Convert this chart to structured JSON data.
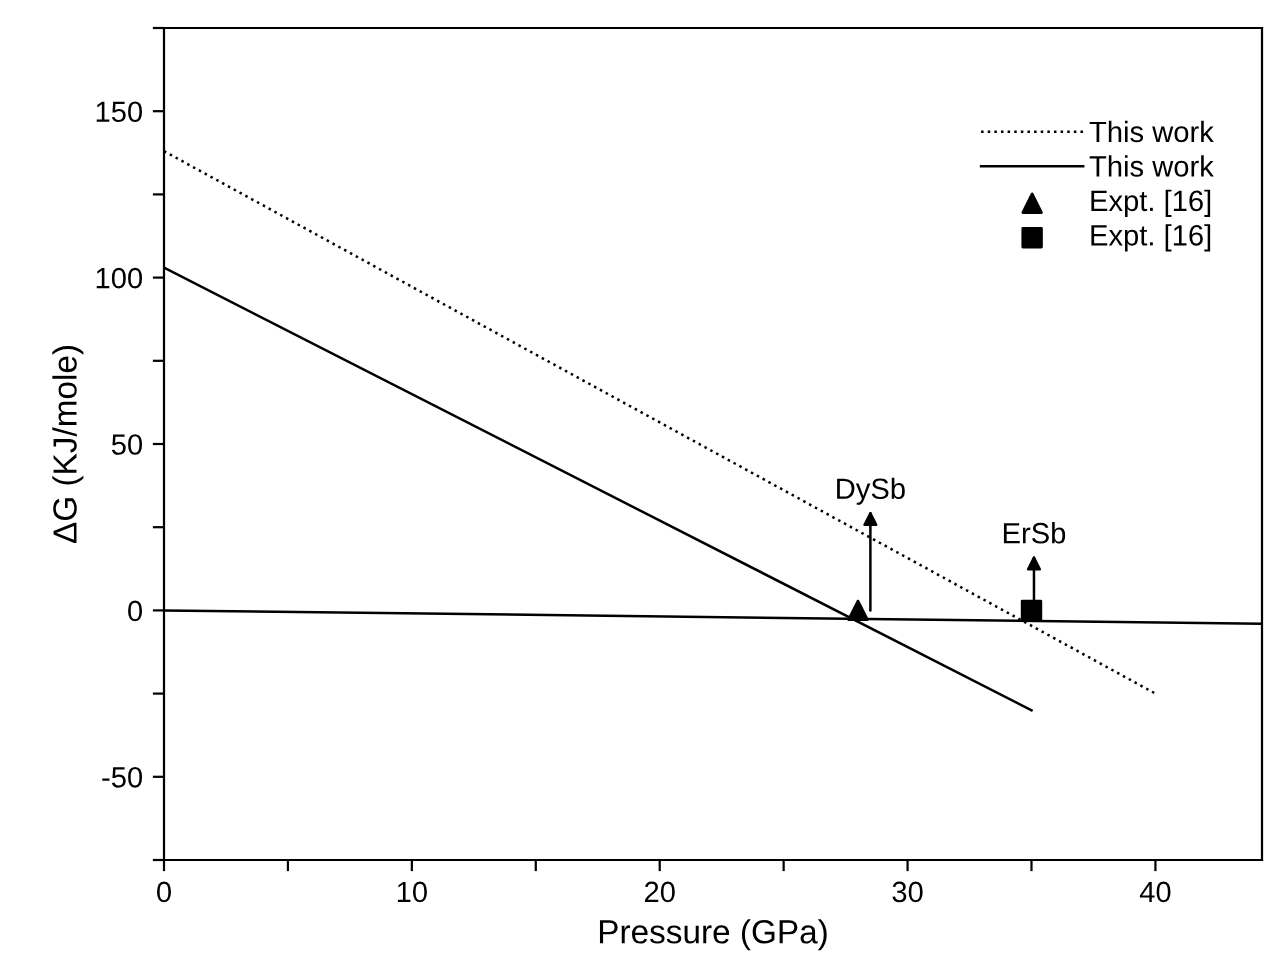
{
  "chart_data": {
    "type": "line",
    "xlabel": "Pressure (GPa)",
    "ylabel": "ΔG (KJ/mole)",
    "xlim": [
      0,
      44.3
    ],
    "ylim": [
      -75,
      175
    ],
    "xticks": [
      0,
      {
        "value": 5,
        "label": null
      },
      10,
      {
        "value": 15,
        "label": null
      },
      20,
      {
        "value": 25,
        "label": null
      },
      30,
      {
        "value": 35,
        "label": null
      },
      40
    ],
    "yticks": [
      {
        "value": -75,
        "label": null
      },
      -50,
      {
        "value": -25,
        "label": null
      },
      0,
      {
        "value": 25,
        "label": null
      },
      50,
      {
        "value": 75,
        "label": null
      },
      100,
      {
        "value": 125,
        "label": null
      },
      150,
      {
        "value": 175,
        "label": null
      }
    ],
    "legend": "top right",
    "grid": false,
    "series": [
      {
        "name": "This work",
        "line_style": "dotted",
        "color": "#000000",
        "x": [
          0,
          40
        ],
        "values": [
          138,
          -25
        ]
      },
      {
        "name": "This work",
        "line_style": "solid",
        "color": "#000000",
        "x": [
          0,
          35
        ],
        "values": [
          103,
          -30
        ]
      },
      {
        "name": "Expt. [16]",
        "type": "scatter",
        "marker": "triangle",
        "color": "#000000",
        "x": [
          28
        ],
        "values": [
          0
        ]
      },
      {
        "name": "Expt. [16]",
        "type": "scatter",
        "marker": "square",
        "color": "#000000",
        "x": [
          35
        ],
        "values": [
          0
        ]
      },
      {
        "line_style": "solid",
        "color": "#000000",
        "x": [
          0,
          44.3
        ],
        "values": [
          0,
          -4
        ]
      }
    ],
    "annotations": [
      {
        "text": "DySb",
        "x": 28.5,
        "y": 0
      },
      {
        "text": "ErSb",
        "x": 35.1,
        "y": 0
      }
    ]
  }
}
